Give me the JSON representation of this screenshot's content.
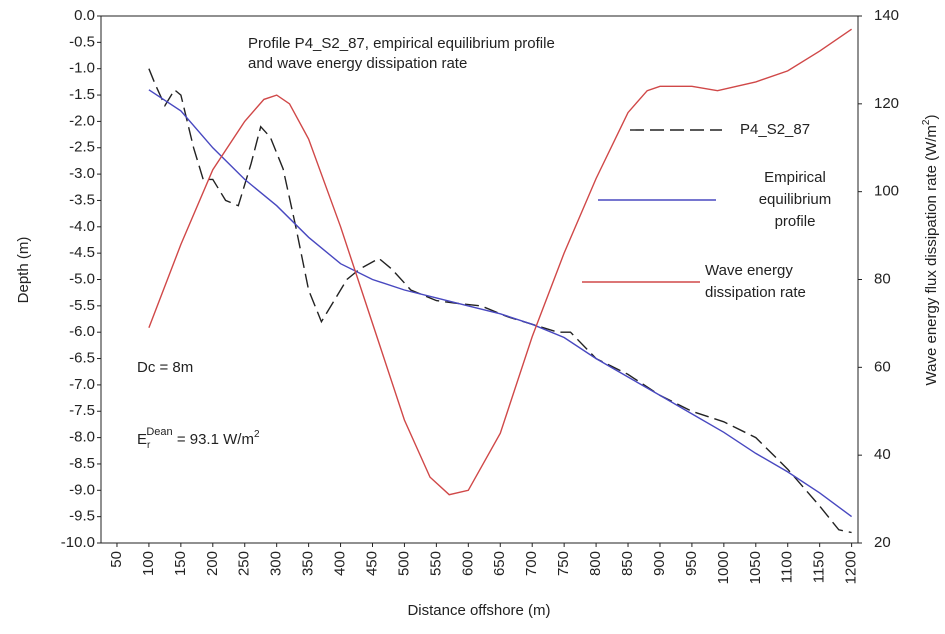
{
  "chart_data": {
    "type": "line",
    "title": [
      "Profile P4_S2_87, empirical equilibrium profile",
      "and wave energy dissipation rate"
    ],
    "x_label": "Distance offshore (m)",
    "y_label": "Depth (m)",
    "y2_label": {
      "text": "Wave energy flux dissipation rate (W/m",
      "sup": "2",
      "end": ")"
    },
    "annotations": [
      {
        "text": "Dc = 8m"
      },
      {
        "base": "E",
        "sub": "r",
        "sup": "Dean",
        "text": " = 93.1 W/m",
        "sup2": "2"
      }
    ],
    "xlim": [
      25,
      1210
    ],
    "xticks": [
      50,
      100,
      150,
      200,
      250,
      300,
      350,
      400,
      450,
      500,
      550,
      600,
      650,
      700,
      750,
      800,
      850,
      900,
      950,
      1000,
      1050,
      1100,
      1150,
      1200
    ],
    "ylim": [
      -10,
      0
    ],
    "yticks": [
      {
        "value": 0,
        "label": "0.0"
      },
      -0.5,
      {
        "value": -1,
        "label": "-1.0"
      },
      -1.5,
      {
        "value": -2,
        "label": "-2.0"
      },
      -2.5,
      {
        "value": -3,
        "label": "-3.0"
      },
      -3.5,
      {
        "value": -4,
        "label": "-4.0"
      },
      -4.5,
      {
        "value": -5,
        "label": "-5.0"
      },
      -5.5,
      {
        "value": -6,
        "label": "-6.0"
      },
      -6.5,
      {
        "value": -7,
        "label": "-7.0"
      },
      -7.5,
      {
        "value": -8,
        "label": "-8.0"
      },
      -8.5,
      {
        "value": -9,
        "label": "-9.0"
      },
      -9.5,
      {
        "value": -10,
        "label": "-10.0"
      }
    ],
    "y2lim": [
      20,
      140
    ],
    "y2ticks": [
      20,
      40,
      60,
      80,
      100,
      120,
      140
    ],
    "grid": false,
    "series": [
      {
        "name": [
          "P4_S2_87"
        ],
        "color": "#222222",
        "dash": true,
        "x": [
          100,
          110,
          125,
          140,
          150,
          170,
          185,
          200,
          220,
          240,
          260,
          275,
          290,
          310,
          330,
          350,
          370,
          390,
          410,
          430,
          460,
          480,
          510,
          550,
          580,
          620,
          660,
          700,
          740,
          760,
          800,
          850,
          900,
          950,
          1000,
          1050,
          1100,
          1150,
          1180,
          1200
        ],
        "values": [
          -1.0,
          -1.3,
          -1.7,
          -1.4,
          -1.5,
          -2.5,
          -3.1,
          -3.1,
          -3.5,
          -3.6,
          -2.8,
          -2.1,
          -2.3,
          -2.9,
          -4.0,
          -5.2,
          -5.8,
          -5.4,
          -5.0,
          -4.8,
          -4.6,
          -4.8,
          -5.2,
          -5.4,
          -5.45,
          -5.5,
          -5.7,
          -5.85,
          -6.0,
          -6.0,
          -6.5,
          -6.8,
          -7.2,
          -7.5,
          -7.7,
          -8.0,
          -8.6,
          -9.3,
          -9.75,
          -9.8
        ]
      },
      {
        "name": [
          "Empirical",
          "equilibrium",
          "profile"
        ],
        "color": "#4848c0",
        "x": [
          100,
          150,
          200,
          250,
          300,
          350,
          400,
          450,
          500,
          550,
          600,
          650,
          700,
          750,
          800,
          850,
          900,
          950,
          1000,
          1050,
          1100,
          1150,
          1200
        ],
        "values": [
          -1.4,
          -1.8,
          -2.5,
          -3.1,
          -3.6,
          -4.2,
          -4.7,
          -5.0,
          -5.2,
          -5.35,
          -5.5,
          -5.65,
          -5.85,
          -6.1,
          -6.5,
          -6.85,
          -7.2,
          -7.55,
          -7.9,
          -8.3,
          -8.65,
          -9.05,
          -9.5
        ]
      },
      {
        "name": [
          "Wave energy",
          "dissipation rate"
        ],
        "color": "#d04848",
        "axis": "y2",
        "x": [
          100,
          150,
          200,
          250,
          280,
          300,
          320,
          350,
          400,
          450,
          500,
          540,
          570,
          600,
          650,
          700,
          750,
          800,
          850,
          880,
          900,
          950,
          990,
          1020,
          1050,
          1100,
          1150,
          1200
        ],
        "values": [
          69,
          88,
          105,
          116,
          121,
          122,
          120,
          112,
          92,
          70,
          48,
          35,
          31,
          32,
          45,
          67,
          86,
          103,
          118,
          123,
          124,
          124,
          123,
          124,
          125,
          127.5,
          132,
          137
        ]
      }
    ]
  }
}
